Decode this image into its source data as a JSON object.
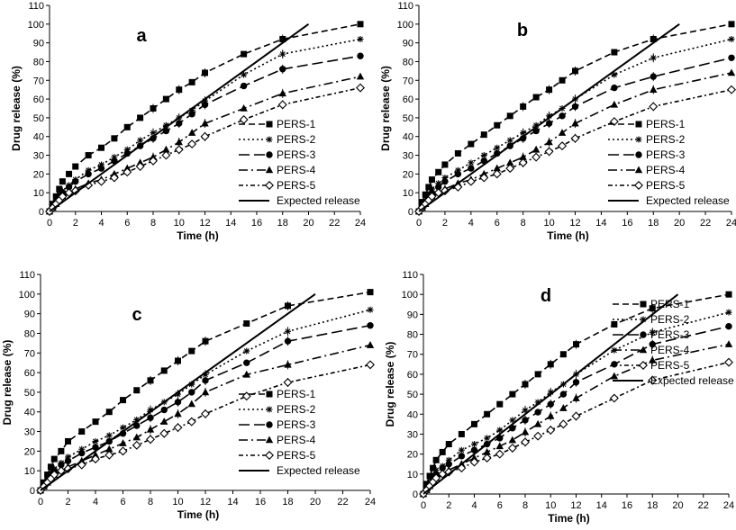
{
  "chart_data": [
    {
      "panel": "a",
      "type": "line",
      "xlabel": "Time (h)",
      "ylabel": "Drug release (%)",
      "xlim": [
        0,
        24
      ],
      "ylim": [
        0,
        110
      ],
      "xticks": [
        0,
        2,
        4,
        6,
        8,
        10,
        12,
        14,
        16,
        18,
        20,
        22,
        24
      ],
      "yticks": [
        0,
        10,
        20,
        30,
        40,
        50,
        60,
        70,
        80,
        90,
        100,
        110
      ],
      "legend_position": "lower-right",
      "series": [
        {
          "name": "PERS-1",
          "x": [
            0,
            0.25,
            0.5,
            0.75,
            1,
            1.5,
            2,
            3,
            4,
            5,
            6,
            7,
            8,
            9,
            10,
            11,
            12,
            15,
            18,
            24
          ],
          "y": [
            0,
            4,
            8,
            12,
            16,
            20,
            24,
            30,
            34,
            39,
            45,
            50,
            55,
            60,
            65,
            69,
            74,
            84,
            92,
            100
          ]
        },
        {
          "name": "PERS-2",
          "x": [
            0,
            0.25,
            0.5,
            0.75,
            1,
            1.5,
            2,
            3,
            4,
            5,
            6,
            7,
            8,
            9,
            10,
            11,
            12,
            15,
            18,
            24
          ],
          "y": [
            0,
            3,
            6,
            9,
            11,
            14,
            17,
            22,
            25,
            29,
            33,
            38,
            42,
            46,
            50,
            54,
            59,
            73,
            84,
            92
          ]
        },
        {
          "name": "PERS-3",
          "x": [
            0,
            0.25,
            0.5,
            0.75,
            1,
            1.5,
            2,
            3,
            4,
            5,
            6,
            7,
            8,
            9,
            10,
            11,
            12,
            15,
            18,
            24
          ],
          "y": [
            0,
            3,
            5,
            8,
            10,
            13,
            16,
            20,
            23,
            27,
            31,
            35,
            39,
            43,
            47,
            52,
            57,
            67,
            76,
            83
          ]
        },
        {
          "name": "PERS-4",
          "x": [
            0,
            0.25,
            0.5,
            0.75,
            1,
            1.5,
            2,
            3,
            4,
            5,
            6,
            7,
            8,
            9,
            10,
            11,
            12,
            15,
            18,
            24
          ],
          "y": [
            0,
            2,
            4,
            6,
            8,
            10,
            12,
            15,
            17,
            20,
            23,
            26,
            29,
            33,
            37,
            42,
            47,
            55,
            63,
            72
          ]
        },
        {
          "name": "PERS-5",
          "x": [
            0,
            0.25,
            0.5,
            0.75,
            1,
            1.5,
            2,
            3,
            4,
            5,
            6,
            7,
            8,
            9,
            10,
            11,
            12,
            15,
            18,
            24
          ],
          "y": [
            0,
            2,
            4,
            6,
            8,
            10,
            11,
            14,
            16,
            18,
            21,
            24,
            27,
            30,
            33,
            36,
            40,
            49,
            57,
            66
          ]
        },
        {
          "name": "Expected release",
          "x": [
            0,
            20
          ],
          "y": [
            0,
            100
          ]
        }
      ]
    },
    {
      "panel": "b",
      "type": "line",
      "xlabel": "Time (h)",
      "ylabel": "Drug release (%)",
      "xlim": [
        0,
        24
      ],
      "ylim": [
        0,
        110
      ],
      "xticks": [
        0,
        2,
        4,
        6,
        8,
        10,
        12,
        14,
        16,
        18,
        20,
        22,
        24
      ],
      "yticks": [
        0,
        10,
        20,
        30,
        40,
        50,
        60,
        70,
        80,
        90,
        100,
        110
      ],
      "legend_position": "lower-right",
      "series": [
        {
          "name": "PERS-1",
          "x": [
            0,
            0.25,
            0.5,
            0.75,
            1,
            1.5,
            2,
            3,
            4,
            5,
            6,
            7,
            8,
            9,
            10,
            11,
            12,
            15,
            18,
            24
          ],
          "y": [
            0,
            5,
            9,
            13,
            17,
            21,
            25,
            31,
            36,
            41,
            46,
            51,
            56,
            61,
            65,
            70,
            75,
            85,
            92,
            100
          ]
        },
        {
          "name": "PERS-2",
          "x": [
            0,
            0.25,
            0.5,
            0.75,
            1,
            1.5,
            2,
            3,
            4,
            5,
            6,
            7,
            8,
            9,
            10,
            11,
            12,
            15,
            18,
            24
          ],
          "y": [
            0,
            3,
            6,
            9,
            12,
            15,
            18,
            22,
            26,
            30,
            34,
            38,
            42,
            46,
            51,
            55,
            60,
            73,
            82,
            92
          ]
        },
        {
          "name": "PERS-3",
          "x": [
            0,
            0.25,
            0.5,
            0.75,
            1,
            1.5,
            2,
            3,
            4,
            5,
            6,
            7,
            8,
            9,
            10,
            11,
            12,
            15,
            18,
            24
          ],
          "y": [
            0,
            3,
            5,
            8,
            10,
            13,
            16,
            20,
            23,
            27,
            31,
            35,
            39,
            43,
            47,
            51,
            56,
            66,
            72,
            82
          ]
        },
        {
          "name": "PERS-4",
          "x": [
            0,
            0.25,
            0.5,
            0.75,
            1,
            1.5,
            2,
            3,
            4,
            5,
            6,
            7,
            8,
            9,
            10,
            11,
            12,
            15,
            18,
            24
          ],
          "y": [
            0,
            2,
            4,
            6,
            8,
            10,
            12,
            15,
            17,
            20,
            23,
            26,
            29,
            33,
            37,
            42,
            47,
            57,
            65,
            74
          ]
        },
        {
          "name": "PERS-5",
          "x": [
            0,
            0.25,
            0.5,
            0.75,
            1,
            1.5,
            2,
            3,
            4,
            5,
            6,
            7,
            8,
            9,
            10,
            11,
            12,
            15,
            18,
            24
          ],
          "y": [
            0,
            2,
            4,
            6,
            8,
            10,
            11,
            13,
            16,
            18,
            20,
            23,
            26,
            29,
            32,
            35,
            39,
            48,
            56,
            65
          ]
        },
        {
          "name": "Expected release",
          "x": [
            0,
            20
          ],
          "y": [
            0,
            100
          ]
        }
      ]
    },
    {
      "panel": "c",
      "type": "line",
      "xlabel": "Time (h)",
      "ylabel": "Drug release (%)",
      "xlim": [
        0,
        24
      ],
      "ylim": [
        0,
        110
      ],
      "xticks": [
        0,
        2,
        4,
        6,
        8,
        10,
        12,
        14,
        16,
        18,
        20,
        22,
        24
      ],
      "yticks": [
        0,
        10,
        20,
        30,
        40,
        50,
        60,
        70,
        80,
        90,
        100,
        110
      ],
      "legend_position": "lower-right",
      "series": [
        {
          "name": "PERS-1",
          "x": [
            0,
            0.25,
            0.5,
            0.75,
            1,
            1.5,
            2,
            3,
            4,
            5,
            6,
            7,
            8,
            9,
            10,
            11,
            12,
            15,
            18,
            24
          ],
          "y": [
            0,
            4,
            8,
            12,
            16,
            20,
            25,
            30,
            35,
            40,
            46,
            51,
            56,
            61,
            66,
            71,
            76,
            85,
            94,
            101
          ]
        },
        {
          "name": "PERS-2",
          "x": [
            0,
            0.25,
            0.5,
            0.75,
            1,
            1.5,
            2,
            3,
            4,
            5,
            6,
            7,
            8,
            9,
            10,
            11,
            12,
            15,
            18,
            24
          ],
          "y": [
            0,
            3,
            6,
            9,
            11,
            14,
            17,
            21,
            25,
            28,
            32,
            36,
            41,
            45,
            49,
            54,
            59,
            71,
            81,
            92
          ]
        },
        {
          "name": "PERS-3",
          "x": [
            0,
            0.25,
            0.5,
            0.75,
            1,
            1.5,
            2,
            3,
            4,
            5,
            6,
            7,
            8,
            9,
            10,
            11,
            12,
            15,
            18,
            24
          ],
          "y": [
            0,
            3,
            5,
            8,
            10,
            13,
            15,
            19,
            22,
            25,
            29,
            33,
            37,
            41,
            45,
            50,
            56,
            65,
            76,
            84
          ]
        },
        {
          "name": "PERS-4",
          "x": [
            0,
            0.25,
            0.5,
            0.75,
            1,
            1.5,
            2,
            3,
            4,
            5,
            6,
            7,
            8,
            9,
            10,
            11,
            12,
            15,
            18,
            24
          ],
          "y": [
            0,
            2,
            4,
            6,
            8,
            10,
            12,
            15,
            18,
            21,
            24,
            27,
            31,
            35,
            39,
            44,
            50,
            59,
            64,
            74
          ]
        },
        {
          "name": "PERS-5",
          "x": [
            0,
            0.25,
            0.5,
            0.75,
            1,
            1.5,
            2,
            3,
            4,
            5,
            6,
            7,
            8,
            9,
            10,
            11,
            12,
            15,
            18,
            24
          ],
          "y": [
            0,
            2,
            4,
            6,
            8,
            10,
            11,
            13,
            16,
            18,
            20,
            23,
            26,
            29,
            32,
            35,
            39,
            48,
            55,
            64
          ]
        },
        {
          "name": "Expected release",
          "x": [
            0,
            20
          ],
          "y": [
            0,
            100
          ]
        }
      ]
    },
    {
      "panel": "d",
      "type": "line",
      "xlabel": "Time (h)",
      "ylabel": "Drug release (%)",
      "xlim": [
        0,
        24
      ],
      "ylim": [
        0,
        110
      ],
      "xticks": [
        0,
        2,
        4,
        6,
        8,
        10,
        12,
        14,
        16,
        18,
        20,
        22,
        24
      ],
      "yticks": [
        0,
        10,
        20,
        30,
        40,
        50,
        60,
        70,
        80,
        90,
        100,
        110
      ],
      "legend_position": "lower-right",
      "series": [
        {
          "name": "PERS-1",
          "x": [
            0,
            0.25,
            0.5,
            0.75,
            1,
            1.5,
            2,
            3,
            4,
            5,
            6,
            7,
            8,
            9,
            10,
            11,
            12,
            15,
            18,
            24
          ],
          "y": [
            0,
            5,
            9,
            13,
            17,
            21,
            25,
            30,
            35,
            40,
            45,
            50,
            55,
            60,
            65,
            70,
            75,
            85,
            93,
            100
          ]
        },
        {
          "name": "PERS-2",
          "x": [
            0,
            0.25,
            0.5,
            0.75,
            1,
            1.5,
            2,
            3,
            4,
            5,
            6,
            7,
            8,
            9,
            10,
            11,
            12,
            15,
            18,
            24
          ],
          "y": [
            0,
            3,
            6,
            9,
            12,
            14,
            17,
            22,
            25,
            28,
            32,
            37,
            42,
            46,
            51,
            55,
            60,
            72,
            81,
            91
          ]
        },
        {
          "name": "PERS-3",
          "x": [
            0,
            0.25,
            0.5,
            0.75,
            1,
            1.5,
            2,
            3,
            4,
            5,
            6,
            7,
            8,
            9,
            10,
            11,
            12,
            15,
            18,
            24
          ],
          "y": [
            0,
            3,
            5,
            8,
            10,
            13,
            15,
            19,
            22,
            25,
            28,
            33,
            37,
            41,
            45,
            50,
            56,
            65,
            75,
            84
          ]
        },
        {
          "name": "PERS-4",
          "x": [
            0,
            0.25,
            0.5,
            0.75,
            1,
            1.5,
            2,
            3,
            4,
            5,
            6,
            7,
            8,
            9,
            10,
            11,
            12,
            15,
            18,
            24
          ],
          "y": [
            0,
            2,
            4,
            6,
            8,
            10,
            12,
            15,
            18,
            21,
            24,
            27,
            31,
            35,
            39,
            43,
            48,
            59,
            67,
            75
          ]
        },
        {
          "name": "PERS-5",
          "x": [
            0,
            0.25,
            0.5,
            0.75,
            1,
            1.5,
            2,
            3,
            4,
            5,
            6,
            7,
            8,
            9,
            10,
            11,
            12,
            15,
            18,
            24
          ],
          "y": [
            0,
            2,
            4,
            6,
            8,
            10,
            11,
            13,
            16,
            18,
            20,
            23,
            26,
            29,
            32,
            35,
            39,
            48,
            57,
            66
          ]
        },
        {
          "name": "Expected release",
          "x": [
            0,
            20
          ],
          "y": [
            0,
            100
          ]
        }
      ]
    }
  ]
}
